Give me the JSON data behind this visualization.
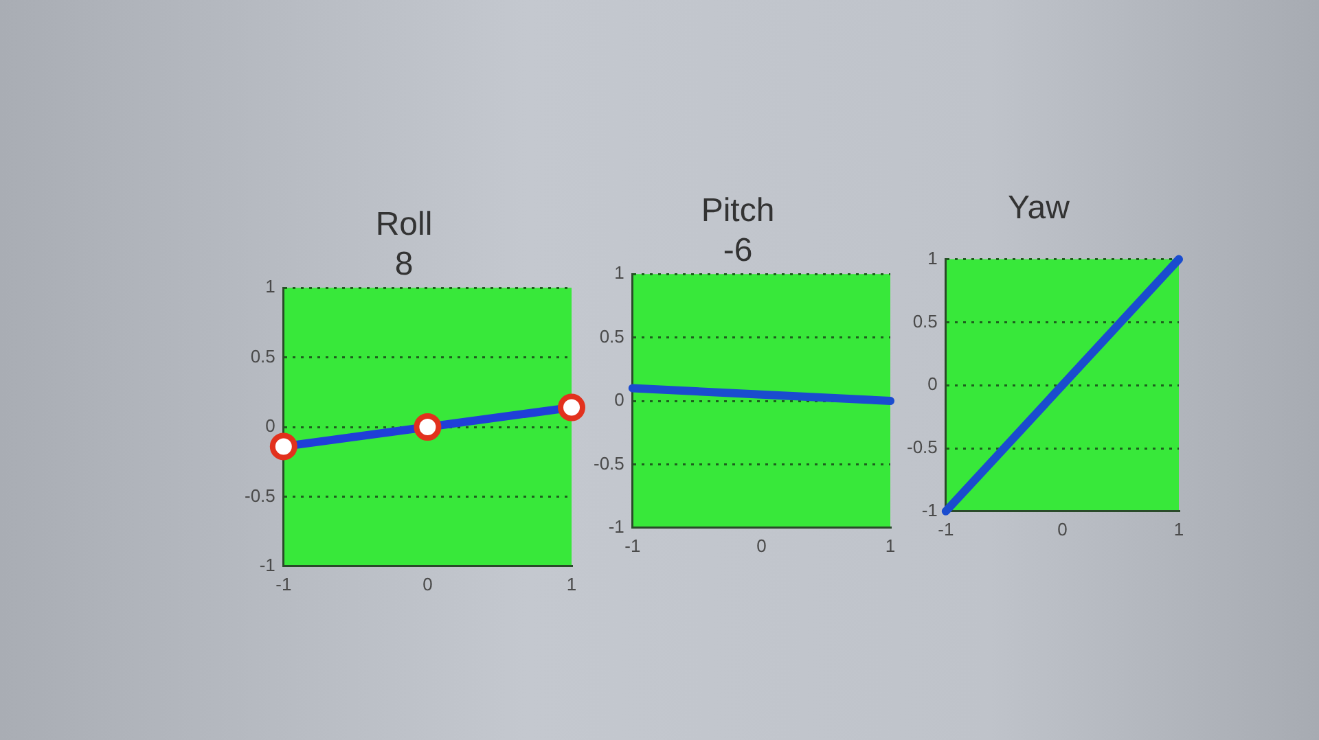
{
  "chart_data": [
    {
      "type": "line",
      "title": "Roll",
      "subtitle": "8",
      "xlim": [
        -1,
        1
      ],
      "xticks": [
        -1,
        0,
        1
      ],
      "ylim": [
        -1,
        1
      ],
      "yticks": [
        -1,
        -0.5,
        0,
        0.5,
        1
      ],
      "grid": "y",
      "series": [
        {
          "color": "#1f3fd8",
          "x": [
            -1,
            0,
            1
          ],
          "values": [
            -0.14,
            0,
            0.14
          ]
        },
        {
          "type": "scatter",
          "color": "#e2311d",
          "marker": "circle",
          "x": [
            -1,
            0,
            1
          ],
          "values": [
            -0.14,
            0,
            0.14
          ]
        }
      ]
    },
    {
      "type": "line",
      "title": "Pitch",
      "subtitle": "-6",
      "xlim": [
        -1,
        1
      ],
      "xticks": [
        -1,
        0,
        1
      ],
      "ylim": [
        -1,
        1
      ],
      "yticks": [
        -1,
        -0.5,
        0,
        0.5,
        1
      ],
      "grid": "y",
      "series": [
        {
          "color": "#1a4ccf",
          "x": [
            -1,
            1
          ],
          "values": [
            0.1,
            0
          ]
        }
      ]
    },
    {
      "type": "line",
      "title": "Yaw",
      "xlim": [
        -1,
        1
      ],
      "xticks": [
        -1,
        0,
        1
      ],
      "ylim": [
        -1,
        1
      ],
      "yticks": [
        -1,
        -0.5,
        0,
        0.5,
        1
      ],
      "grid": "y",
      "series": [
        {
          "color": "#1a4ccf",
          "x": [
            -1,
            1
          ],
          "values": [
            -1,
            1
          ]
        }
      ]
    }
  ]
}
